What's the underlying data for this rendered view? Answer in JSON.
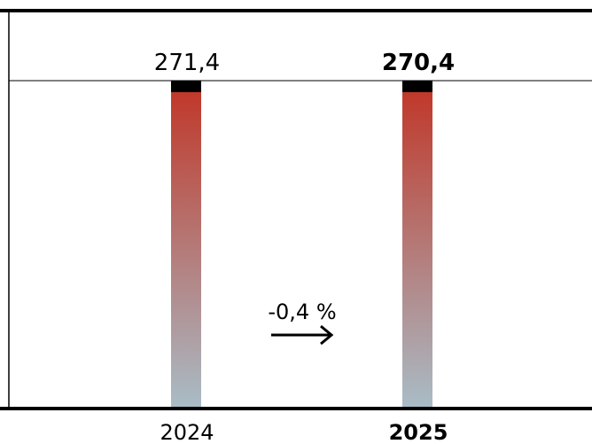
{
  "chart_data": {
    "type": "bar",
    "categories": [
      "2024",
      "2025"
    ],
    "values": [
      271.4,
      270.4
    ],
    "value_labels": [
      "271,4",
      "270,4"
    ],
    "change_label": "-0,4 %",
    "bar_gradient": {
      "top": "#c0392b",
      "bottom": "#a9bcc6"
    },
    "cap_color": "#000000",
    "line_color": "#000000",
    "text_color": "#000000",
    "highlight_category": "2025"
  }
}
